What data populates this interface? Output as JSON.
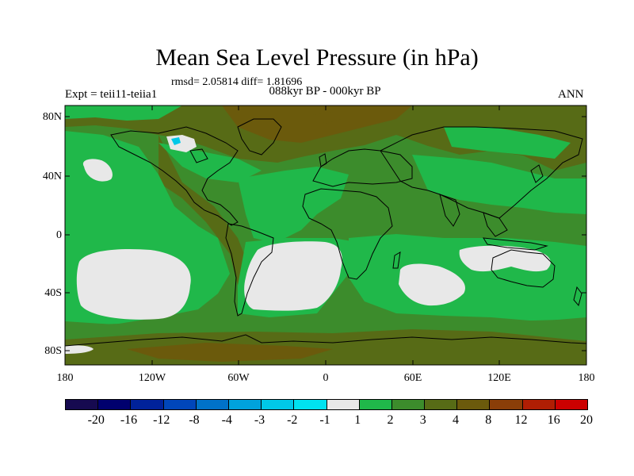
{
  "title": "Mean Sea Level Pressure (in hPa)",
  "stats_line": "rmsd= 2.05814 diff= 1.81696",
  "left_label": "Expt = teii11-teiia1",
  "center_label": "088kyr BP - 000kyr BP",
  "right_label": "ANN",
  "lat_ticks": [
    "80N",
    "40N",
    "0",
    "40S",
    "80S"
  ],
  "lon_ticks": [
    "180",
    "120W",
    "60W",
    "0",
    "60E",
    "120E",
    "180"
  ],
  "legend": {
    "labels": [
      "-20",
      "-16",
      "-12",
      "-8",
      "-4",
      "-3",
      "-2",
      "-1",
      "1",
      "2",
      "3",
      "4",
      "8",
      "12",
      "16",
      "20"
    ],
    "colors": [
      "#160a50",
      "#00006e",
      "#00229a",
      "#0046ba",
      "#0072c8",
      "#00a2dc",
      "#00c8e8",
      "#00e2f0",
      "#e8e8e8",
      "#20b84a",
      "#3c8c2c",
      "#576b16",
      "#6b5a0c",
      "#8a3e08",
      "#b01e04",
      "#cc0000"
    ]
  },
  "map_colors": {
    "background_band": "#576b16",
    "high_band": "#6b5a0c",
    "mid_band": "#3c8c2c",
    "low_band": "#20b84a",
    "near_zero": "#e8e8e8",
    "negative": "#00c8e8",
    "peak": "#8a3e08"
  }
}
